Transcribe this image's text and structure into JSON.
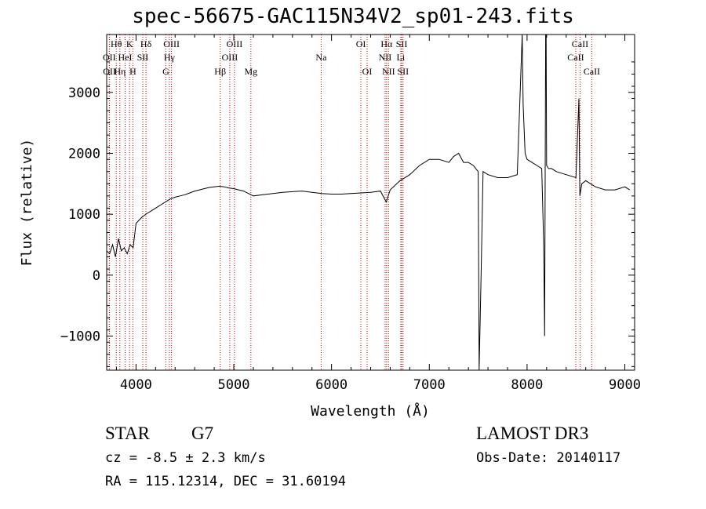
{
  "title": "spec-56675-GAC115N34V2_sp01-243.fits",
  "info": {
    "class": "STAR",
    "subclass": "G7",
    "survey": "LAMOST DR3",
    "cz": "cz = -8.5 ± 2.3 km/s",
    "obs_date": "Obs-Date: 20140117",
    "coords": "RA = 115.12314, DEC =  31.60194"
  },
  "chart_data": {
    "type": "line",
    "title": "spec-56675-GAC115N34V2_sp01-243.fits",
    "xlabel": "Wavelength (Å)",
    "ylabel": "Flux (relative)",
    "xlim": [
      3700,
      9100
    ],
    "ylim": [
      -1560,
      3950
    ],
    "xticks": [
      4000,
      5000,
      6000,
      7000,
      8000,
      9000
    ],
    "yticks": [
      -1000,
      0,
      1000,
      2000,
      3000
    ],
    "line_color": "#000000",
    "marker_color": "#cc0000",
    "series": [
      {
        "x": [
          3700,
          3730,
          3760,
          3790,
          3820,
          3850,
          3880,
          3910,
          3940,
          3970,
          4000,
          4030,
          4060,
          4100,
          4150,
          4200,
          4250,
          4300,
          4350,
          4400,
          4450,
          4500,
          4550,
          4600,
          4650,
          4700,
          4750,
          4800,
          4850,
          4900,
          4950,
          5000,
          5050,
          5100,
          5150,
          5200,
          5300,
          5400,
          5500,
          5600,
          5700,
          5800,
          5900,
          6000,
          6100,
          6200,
          6300,
          6400,
          6500,
          6560,
          6600,
          6700,
          6800,
          6900,
          7000,
          7100,
          7200,
          7250,
          7300,
          7350,
          7400,
          7450,
          7500,
          7510,
          7530,
          7550,
          7600,
          7700,
          7800,
          7900,
          7950,
          7960,
          7980,
          8000,
          8050,
          8100,
          8150,
          8170,
          8180,
          8190,
          8195,
          8200,
          8220,
          8250,
          8300,
          8400,
          8500,
          8530,
          8540,
          8560,
          8600,
          8650,
          8700,
          8800,
          8900,
          9000,
          9050
        ],
        "y": [
          400,
          350,
          500,
          300,
          600,
          400,
          450,
          350,
          500,
          450,
          850,
          900,
          950,
          1000,
          1050,
          1100,
          1150,
          1200,
          1250,
          1280,
          1300,
          1320,
          1350,
          1380,
          1400,
          1420,
          1440,
          1450,
          1460,
          1450,
          1430,
          1420,
          1400,
          1380,
          1340,
          1300,
          1320,
          1340,
          1360,
          1370,
          1380,
          1360,
          1340,
          1330,
          1330,
          1340,
          1350,
          1360,
          1380,
          1200,
          1400,
          1550,
          1650,
          1800,
          1900,
          1900,
          1850,
          1950,
          2000,
          1850,
          1850,
          1800,
          1700,
          -1560,
          0,
          1700,
          1650,
          1600,
          1600,
          1650,
          3950,
          2800,
          2000,
          1900,
          1850,
          1800,
          1750,
          500,
          -1000,
          3950,
          3950,
          1800,
          1750,
          1750,
          1700,
          1650,
          1600,
          2900,
          1300,
          1500,
          1550,
          1500,
          1450,
          1400,
          1400,
          1450,
          1400
        ]
      }
    ],
    "markers": [
      {
        "label": "Hθ",
        "x": 3798,
        "row": 1
      },
      {
        "label": "OII",
        "x": 3727,
        "row": 2
      },
      {
        "label": "OII",
        "x": 3729,
        "row": 3
      },
      {
        "label": "Hη",
        "x": 3835,
        "row": 3
      },
      {
        "label": "HeI",
        "x": 3889,
        "row": 2
      },
      {
        "label": "K",
        "x": 3934,
        "row": 1
      },
      {
        "label": "H",
        "x": 3968,
        "row": 3
      },
      {
        "label": "SII",
        "x": 4069,
        "row": 2
      },
      {
        "label": "Hδ",
        "x": 4102,
        "row": 1
      },
      {
        "label": "OIII",
        "x": 4363,
        "row": 1
      },
      {
        "label": "Hγ",
        "x": 4341,
        "row": 2
      },
      {
        "label": "G",
        "x": 4305,
        "row": 3
      },
      {
        "label": "Hβ",
        "x": 4861,
        "row": 3
      },
      {
        "label": "OIII",
        "x": 5007,
        "row": 1
      },
      {
        "label": "OIII",
        "x": 4959,
        "row": 2
      },
      {
        "label": "Mg",
        "x": 5175,
        "row": 3
      },
      {
        "label": "Na",
        "x": 5894,
        "row": 2
      },
      {
        "label": "OI",
        "x": 6300,
        "row": 1
      },
      {
        "label": "OI",
        "x": 6364,
        "row": 3
      },
      {
        "label": "Hα",
        "x": 6563,
        "row": 1
      },
      {
        "label": "NII",
        "x": 6548,
        "row": 2
      },
      {
        "label": "NII",
        "x": 6583,
        "row": 3
      },
      {
        "label": "SII",
        "x": 6717,
        "row": 1
      },
      {
        "label": "Li",
        "x": 6708,
        "row": 2
      },
      {
        "label": "SII",
        "x": 6731,
        "row": 3
      },
      {
        "label": "CaII",
        "x": 8542,
        "row": 1
      },
      {
        "label": "CaII",
        "x": 8498,
        "row": 2
      },
      {
        "label": "CaII",
        "x": 8662,
        "row": 3
      }
    ]
  }
}
